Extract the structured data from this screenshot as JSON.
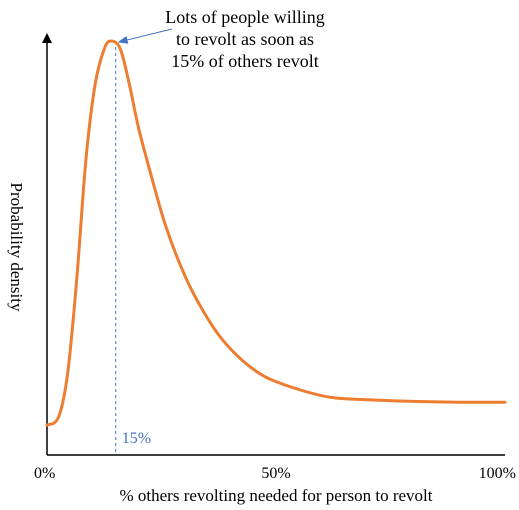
{
  "chart_data": {
    "type": "line",
    "title": "",
    "xlabel": "% others revolting needed for person to revolt",
    "ylabel": "Probability density",
    "xlim": [
      0,
      100
    ],
    "ylim": [
      0,
      1
    ],
    "x_tick_labels": [
      "0%",
      "50%",
      "100%"
    ],
    "x_ticks": [
      0,
      50,
      100
    ],
    "y_ticks_shown": false,
    "grid": false,
    "legend": "none",
    "series": [
      {
        "color": "#ED7D31",
        "points": [
          [
            0,
            0.03
          ],
          [
            2.5,
            0.05
          ],
          [
            4.5,
            0.16
          ],
          [
            6.5,
            0.4
          ],
          [
            8.5,
            0.7
          ],
          [
            10.5,
            0.89
          ],
          [
            12.5,
            0.98
          ],
          [
            14,
            1.0
          ],
          [
            16,
            0.98
          ],
          [
            18,
            0.89
          ],
          [
            20,
            0.78
          ],
          [
            23,
            0.65
          ],
          [
            26,
            0.53
          ],
          [
            30,
            0.41
          ],
          [
            34,
            0.32
          ],
          [
            38,
            0.25
          ],
          [
            43,
            0.19
          ],
          [
            48,
            0.15
          ],
          [
            55,
            0.12
          ],
          [
            62,
            0.1
          ],
          [
            70,
            0.094
          ],
          [
            80,
            0.09
          ],
          [
            90,
            0.088
          ],
          [
            100,
            0.088
          ]
        ]
      }
    ],
    "reference_line": {
      "x": 15,
      "label": "15%",
      "style": "dashed",
      "color": "#4472C4"
    },
    "annotation": {
      "lines": [
        "Lots of people willing",
        "to revolt as soon as",
        "15% of others revolt"
      ],
      "arrow_to": [
        15,
        1.0
      ],
      "arrow_color": "#4472C4"
    }
  }
}
